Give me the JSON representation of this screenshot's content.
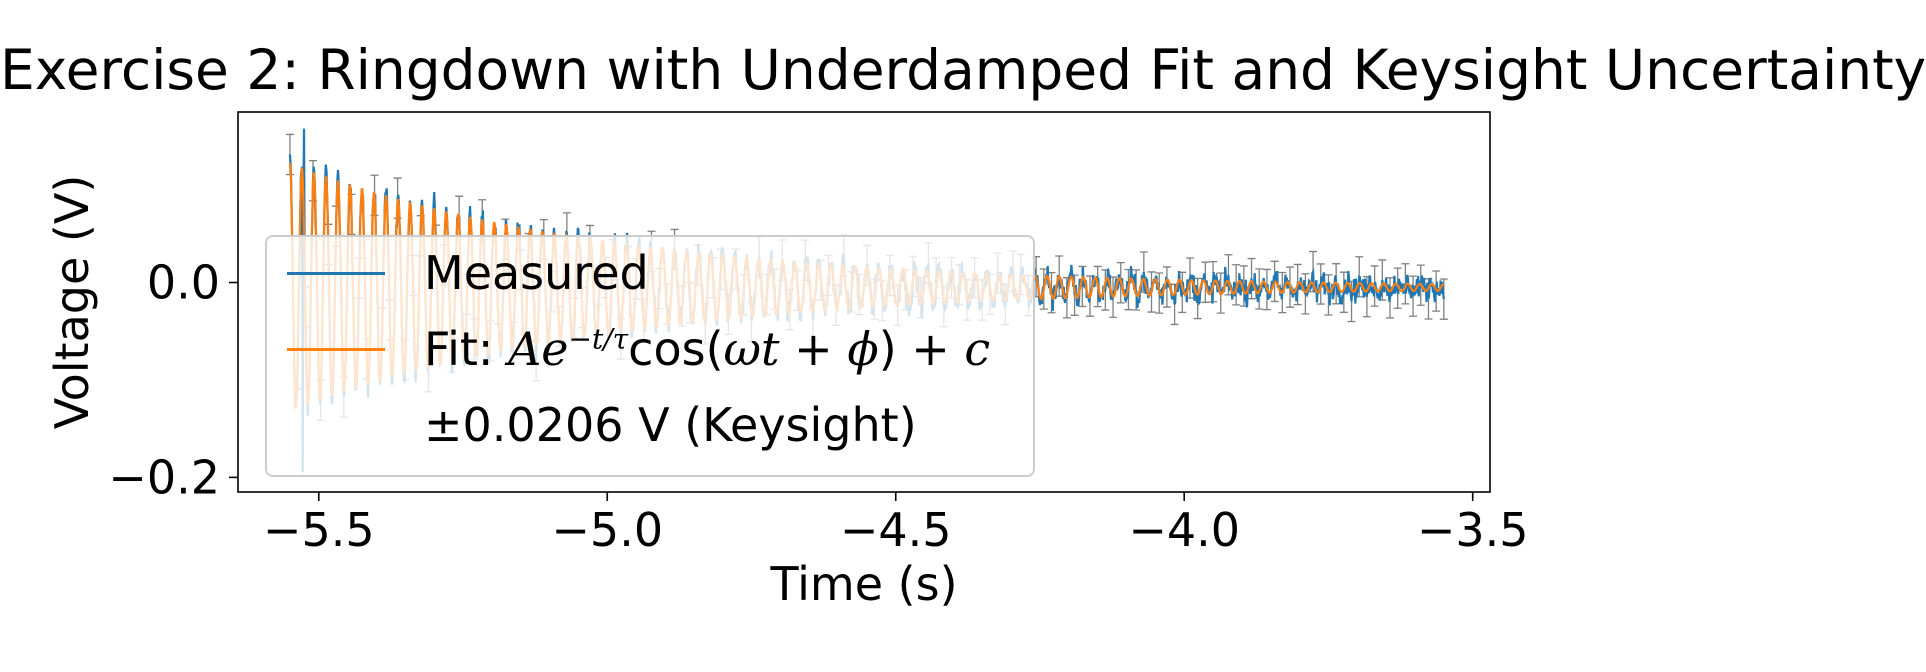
{
  "chart_data": {
    "type": "line",
    "title": "Exercise 2: Ringdown with Underdamped Fit and Keysight Uncertainty",
    "xlabel": "Time (s)",
    "ylabel": "Voltage (V)",
    "xlim": [
      -5.64,
      -3.47
    ],
    "ylim": [
      -0.215,
      0.175
    ],
    "xticks": [
      -5.5,
      -5.0,
      -4.5,
      -4.0,
      -3.5
    ],
    "xtick_labels": [
      "−5.5",
      "−5.0",
      "−4.5",
      "−4.0",
      "−3.5"
    ],
    "yticks": [
      -0.2,
      0.0
    ],
    "ytick_labels": [
      "−0.2",
      "0.0"
    ],
    "grid": false,
    "legend_position": "center-left",
    "series": [
      {
        "name": "Measured",
        "color": "#1f77b4",
        "t_start": -5.55,
        "t_end": -3.55,
        "amplitude": 0.13,
        "tau": 0.55,
        "frequency_hz": 48,
        "offset": -0.005,
        "peak_value": 0.158,
        "min_value": -0.195
      },
      {
        "name": "Fit: Ae−t/τcos(ωt + ϕ) + c",
        "color": "#ff7f0e",
        "t_start": -5.55,
        "t_end": -3.55,
        "amplitude": 0.128,
        "tau": 0.55,
        "frequency_hz": 48,
        "offset": -0.005
      }
    ],
    "errorbar": {
      "label": "±0.0206 V (Keysight)",
      "value_v": 0.0206,
      "color": "#808080"
    }
  },
  "legend": {
    "measured_label": "Measured",
    "fit_prefix": "Fit: ",
    "fit_A": "A",
    "fit_e": "e",
    "fit_exp": "−t/τ",
    "fit_cos": "cos(",
    "fit_omega_t": "ωt",
    "fit_plus1": " + ",
    "fit_phi": "ϕ",
    "fit_close": ") + ",
    "fit_c": "c",
    "errorbar_label": "±0.0206 V (Keysight)"
  }
}
